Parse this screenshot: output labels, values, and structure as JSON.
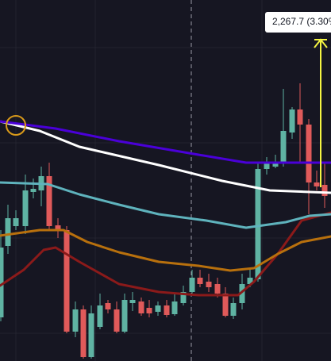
{
  "measure_label": {
    "text": "2,267.7 (3.30%"
  }
}
